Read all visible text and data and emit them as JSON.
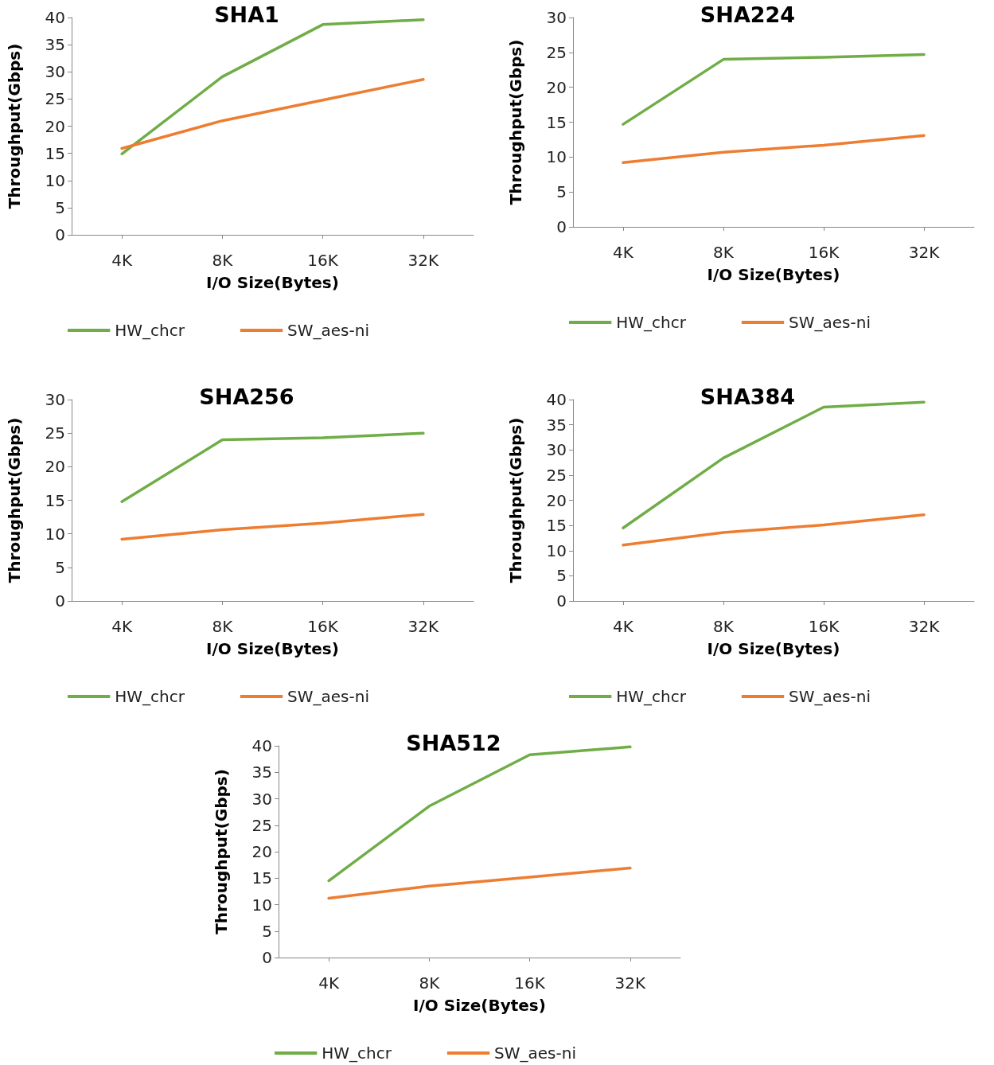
{
  "chart_data": [
    {
      "type": "line",
      "title": "SHA1",
      "xlabel": "I/O Size(Bytes)",
      "ylabel": "Throughput(Gbps)",
      "categories": [
        "4K",
        "8K",
        "16K",
        "32K"
      ],
      "ylim": [
        0,
        40
      ],
      "yticks": [
        0,
        5,
        10,
        15,
        20,
        25,
        30,
        35,
        40
      ],
      "grid": false,
      "legend": "bottom",
      "marker": "none",
      "line_style": "solid",
      "series": [
        {
          "name": "HW_chcr",
          "color": "#70ad47",
          "values": [
            14.9,
            29.1,
            38.7,
            39.6
          ]
        },
        {
          "name": "SW_aes-ni",
          "color": "#ed7d31",
          "values": [
            15.9,
            21.0,
            24.8,
            28.6
          ]
        }
      ]
    },
    {
      "type": "line",
      "title": "SHA224",
      "xlabel": "I/O Size(Bytes)",
      "ylabel": "Throughput(Gbps)",
      "categories": [
        "4K",
        "8K",
        "16K",
        "32K"
      ],
      "ylim": [
        0,
        30
      ],
      "yticks": [
        0,
        5,
        10,
        15,
        20,
        25,
        30
      ],
      "grid": false,
      "legend": "bottom",
      "marker": "none",
      "line_style": "solid",
      "series": [
        {
          "name": "HW_chcr",
          "color": "#70ad47",
          "values": [
            14.7,
            24.0,
            24.3,
            24.7
          ]
        },
        {
          "name": "SW_aes-ni",
          "color": "#ed7d31",
          "values": [
            9.2,
            10.7,
            11.7,
            13.1
          ]
        }
      ]
    },
    {
      "type": "line",
      "title": "SHA256",
      "xlabel": "I/O Size(Bytes)",
      "ylabel": "Throughput(Gbps)",
      "categories": [
        "4K",
        "8K",
        "16K",
        "32K"
      ],
      "ylim": [
        0,
        30
      ],
      "yticks": [
        0,
        5,
        10,
        15,
        20,
        25,
        30
      ],
      "grid": false,
      "legend": "bottom",
      "marker": "none",
      "line_style": "solid",
      "series": [
        {
          "name": "HW_chcr",
          "color": "#70ad47",
          "values": [
            14.8,
            24.0,
            24.3,
            25.0
          ]
        },
        {
          "name": "SW_aes-ni",
          "color": "#ed7d31",
          "values": [
            9.2,
            10.6,
            11.6,
            12.9
          ]
        }
      ]
    },
    {
      "type": "line",
      "title": "SHA384",
      "xlabel": "I/O Size(Bytes)",
      "ylabel": "Throughput(Gbps)",
      "categories": [
        "4K",
        "8K",
        "16K",
        "32K"
      ],
      "ylim": [
        0,
        40
      ],
      "yticks": [
        0,
        5,
        10,
        15,
        20,
        25,
        30,
        35,
        40
      ],
      "grid": false,
      "legend": "bottom",
      "marker": "none",
      "line_style": "solid",
      "series": [
        {
          "name": "HW_chcr",
          "color": "#70ad47",
          "values": [
            14.5,
            28.4,
            38.5,
            39.5
          ]
        },
        {
          "name": "SW_aes-ni",
          "color": "#ed7d31",
          "values": [
            11.1,
            13.6,
            15.1,
            17.1
          ]
        }
      ]
    },
    {
      "type": "line",
      "title": "SHA512",
      "xlabel": "I/O Size(Bytes)",
      "ylabel": "Throughput(Gbps)",
      "categories": [
        "4K",
        "8K",
        "16K",
        "32K"
      ],
      "ylim": [
        0,
        40
      ],
      "yticks": [
        0,
        5,
        10,
        15,
        20,
        25,
        30,
        35,
        40
      ],
      "grid": false,
      "legend": "bottom",
      "marker": "none",
      "line_style": "solid",
      "series": [
        {
          "name": "HW_chcr",
          "color": "#70ad47",
          "values": [
            14.5,
            28.6,
            38.3,
            39.8
          ]
        },
        {
          "name": "SW_aes-ni",
          "color": "#ed7d31",
          "values": [
            11.2,
            13.5,
            15.2,
            16.9
          ]
        }
      ]
    }
  ]
}
